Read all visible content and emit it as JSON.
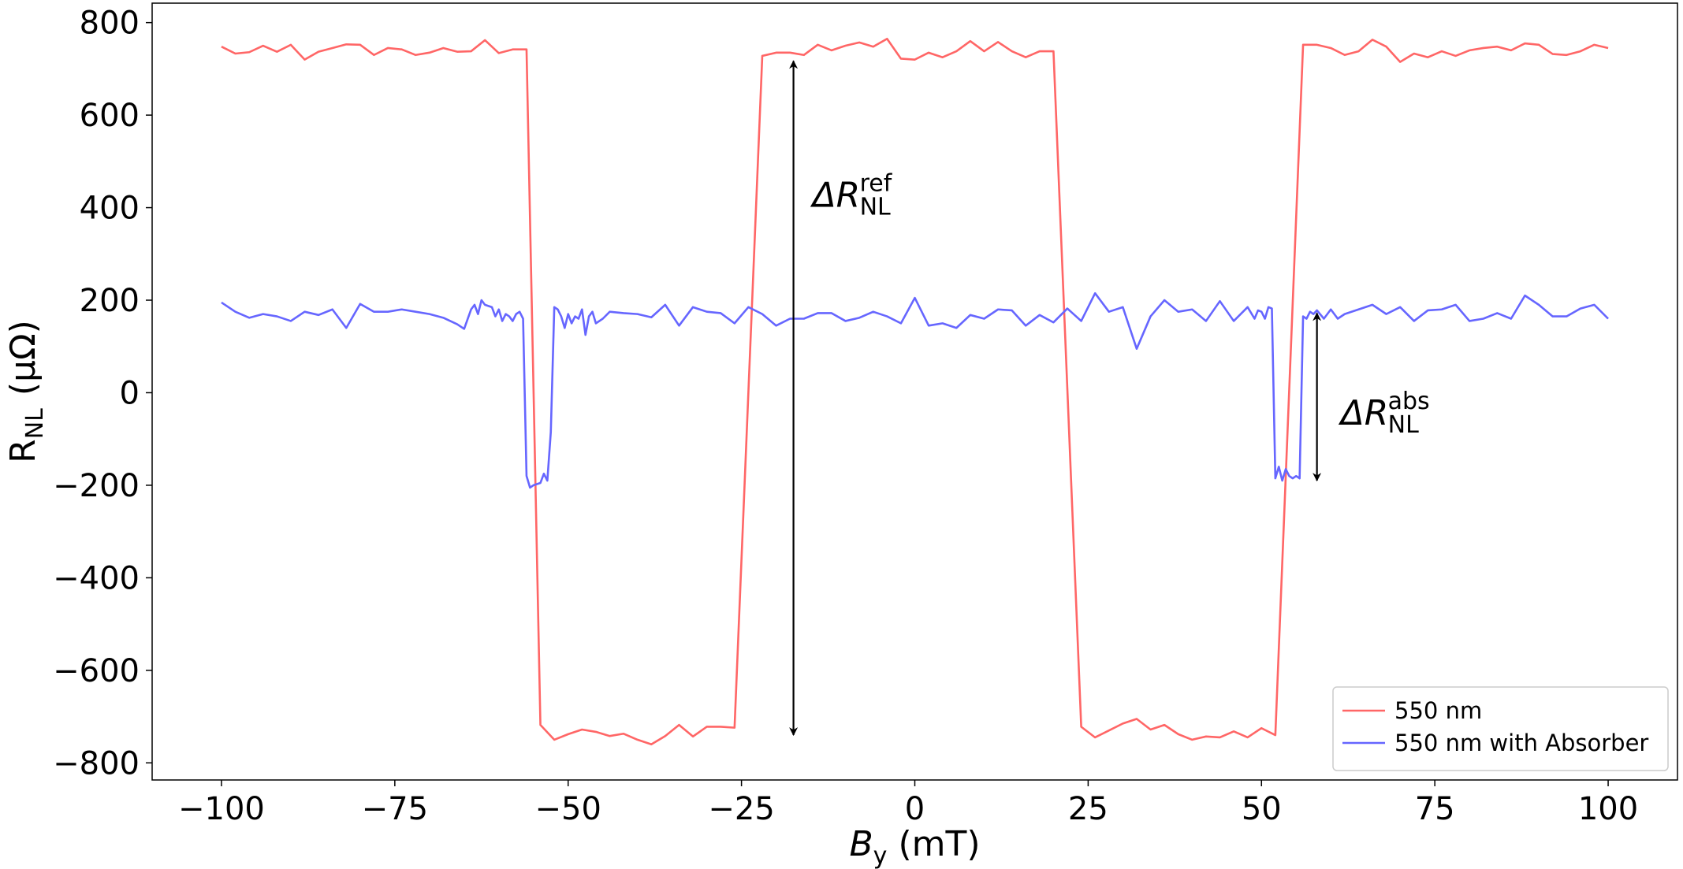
{
  "chart_data": {
    "type": "line",
    "xlabel": {
      "text": "B",
      "sub": "y",
      "unit": "(mT)"
    },
    "ylabel": {
      "text": "R",
      "sub": "NL",
      "unit": "(μΩ)"
    },
    "xlim": [
      -110,
      110
    ],
    "ylim": [
      -837,
      842
    ],
    "xticks": [
      {
        "value": -100,
        "label": "−100"
      },
      {
        "value": -75,
        "label": "−75"
      },
      {
        "value": -50,
        "label": "−50"
      },
      {
        "value": -25,
        "label": "−25"
      },
      0,
      25,
      50,
      75,
      100
    ],
    "yticks": [
      {
        "value": -800,
        "label": "−800"
      },
      {
        "value": -600,
        "label": "−600"
      },
      {
        "value": -400,
        "label": "−400"
      },
      {
        "value": -200,
        "label": "−200"
      },
      0,
      200,
      400,
      600,
      800
    ],
    "grid": false,
    "legend": "lower right",
    "series": [
      {
        "name": "550 nm",
        "color": "#ff6666",
        "x": [
          -100,
          -98,
          -96,
          -94,
          -92,
          -90,
          -88,
          -86,
          -84,
          -82,
          -80,
          -78,
          -76,
          -74,
          -72,
          -70,
          -68,
          -66,
          -64,
          -62,
          -60,
          -58,
          -56,
          -54,
          -52,
          -50,
          -48,
          -46,
          -44,
          -42,
          -40,
          -38,
          -36,
          -34,
          -32,
          -30,
          -28,
          -26,
          -22,
          -20,
          -18,
          -16,
          -14,
          -12,
          -10,
          -8,
          -6,
          -4,
          -2,
          0,
          2,
          4,
          6,
          8,
          10,
          12,
          14,
          16,
          18,
          20,
          24,
          26,
          28,
          30,
          32,
          34,
          36,
          38,
          40,
          42,
          44,
          46,
          48,
          50,
          52,
          56,
          58,
          60,
          62,
          64,
          66,
          68,
          70,
          72,
          74,
          76,
          78,
          80,
          82,
          84,
          86,
          88,
          90,
          92,
          94,
          96,
          98,
          100
        ],
        "values": [
          748,
          733,
          736,
          750,
          737,
          752,
          720,
          737,
          745,
          753,
          752,
          730,
          745,
          742,
          730,
          735,
          745,
          737,
          738,
          762,
          734,
          742,
          742,
          -718,
          -750,
          -738,
          -728,
          -733,
          -742,
          -737,
          -750,
          -760,
          -742,
          -718,
          -743,
          -722,
          -722,
          -724,
          728,
          735,
          735,
          730,
          752,
          740,
          750,
          757,
          748,
          765,
          722,
          720,
          735,
          725,
          738,
          760,
          738,
          758,
          738,
          725,
          738,
          738,
          -722,
          -745,
          -730,
          -715,
          -705,
          -728,
          -718,
          -738,
          -750,
          -743,
          -745,
          -732,
          -745,
          -725,
          -740,
          752,
          752,
          745,
          730,
          738,
          763,
          748,
          715,
          733,
          725,
          738,
          728,
          740,
          745,
          748,
          740,
          755,
          752,
          732,
          730,
          738,
          752,
          745
        ]
      },
      {
        "name": "550 nm with Absorber",
        "color": "#6666ff",
        "x": [
          -100,
          -98,
          -96,
          -94,
          -92,
          -90,
          -88,
          -86,
          -84,
          -82,
          -80,
          -78,
          -76,
          -74,
          -72,
          -70,
          -68,
          -66,
          -65,
          -64,
          -63.5,
          -63,
          -62.5,
          -62,
          -61,
          -60.5,
          -60,
          -59.5,
          -59,
          -58.5,
          -58,
          -57.5,
          -57,
          -56.5,
          -56,
          -55.5,
          -55,
          -54,
          -53.5,
          -53,
          -52.5,
          -52,
          -51.5,
          -51,
          -50.5,
          -50,
          -49.5,
          -49,
          -48.5,
          -48,
          -47.5,
          -47,
          -46.5,
          -46,
          -45,
          -44,
          -42,
          -40,
          -38,
          -36,
          -34,
          -32,
          -30,
          -28,
          -26,
          -24,
          -22,
          -20,
          -18,
          -16,
          -14,
          -12,
          -10,
          -8,
          -6,
          -4,
          -2,
          0,
          2,
          4,
          6,
          8,
          10,
          12,
          14,
          16,
          18,
          20,
          22,
          24,
          26,
          28,
          30,
          32,
          34,
          36,
          38,
          40,
          42,
          44,
          46,
          48,
          49,
          49.5,
          50,
          50.5,
          51,
          51.5,
          52,
          52.5,
          53,
          53.5,
          54,
          54.5,
          55,
          55.5,
          56,
          56.5,
          57,
          57.5,
          58,
          59,
          60,
          61,
          62,
          64,
          66,
          68,
          70,
          72,
          74,
          76,
          78,
          80,
          82,
          84,
          86,
          88,
          90,
          92,
          94,
          96,
          98,
          100
        ],
        "values": [
          195,
          175,
          162,
          170,
          165,
          155,
          175,
          168,
          180,
          140,
          192,
          175,
          175,
          180,
          175,
          170,
          162,
          148,
          138,
          180,
          190,
          170,
          200,
          190,
          185,
          165,
          180,
          155,
          170,
          165,
          155,
          170,
          175,
          160,
          -180,
          -205,
          -200,
          -195,
          -175,
          -190,
          -85,
          185,
          180,
          165,
          140,
          170,
          150,
          165,
          160,
          180,
          125,
          165,
          175,
          150,
          160,
          175,
          172,
          170,
          163,
          190,
          145,
          185,
          175,
          172,
          150,
          185,
          170,
          145,
          160,
          160,
          172,
          172,
          155,
          162,
          175,
          165,
          150,
          205,
          145,
          150,
          140,
          168,
          160,
          180,
          178,
          145,
          168,
          152,
          182,
          155,
          215,
          175,
          185,
          95,
          165,
          200,
          175,
          180,
          155,
          198,
          155,
          185,
          160,
          178,
          175,
          160,
          185,
          182,
          -185,
          -160,
          -190,
          -165,
          -180,
          -185,
          -180,
          -185,
          165,
          160,
          175,
          170,
          178,
          160,
          180,
          160,
          170,
          180,
          190,
          170,
          185,
          155,
          178,
          180,
          190,
          155,
          160,
          172,
          160,
          210,
          190,
          165,
          165,
          182,
          190,
          160
        ]
      }
    ],
    "annotations": [
      {
        "label": "ΔR",
        "sub": "NL",
        "sup": "ref",
        "x": -17.5,
        "y1": 717,
        "y2": -740
      },
      {
        "label": "ΔR",
        "sub": "NL",
        "sup": "abs",
        "x": 58,
        "y1": 172,
        "y2": -190
      }
    ]
  }
}
